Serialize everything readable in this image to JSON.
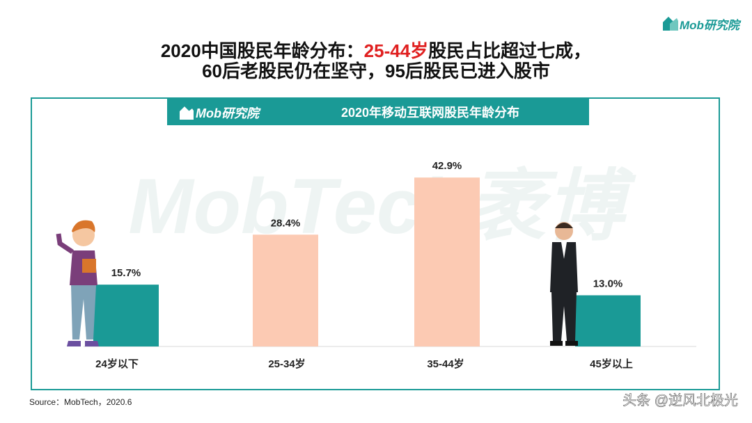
{
  "logo": "Mob研究院",
  "title_line1": {
    "before": "2020中国股民年龄分布：",
    "highlight": "25-44岁",
    "after": "股民占比超过七成，"
  },
  "title_line2": "60后老股民仍在坚守，95后股民已进入股市",
  "source": "Source：MobTech，2020.6",
  "footer_watermark": "头条 @逆风北极光",
  "chart_data": {
    "type": "bar",
    "title": "2020年移动互联网股民年龄分布",
    "banner_logo": "Mob研究院",
    "watermark": "MobTech袤博",
    "categories": [
      "24岁以下",
      "25-34岁",
      "35-44岁",
      "45岁以上"
    ],
    "values": [
      15.7,
      28.4,
      42.9,
      13.0
    ],
    "value_labels": [
      "15.7%",
      "28.4%",
      "42.9%",
      "13.0%"
    ],
    "colors": [
      "#1a9a96",
      "#fccab3",
      "#fccab3",
      "#1a9a96"
    ]
  }
}
